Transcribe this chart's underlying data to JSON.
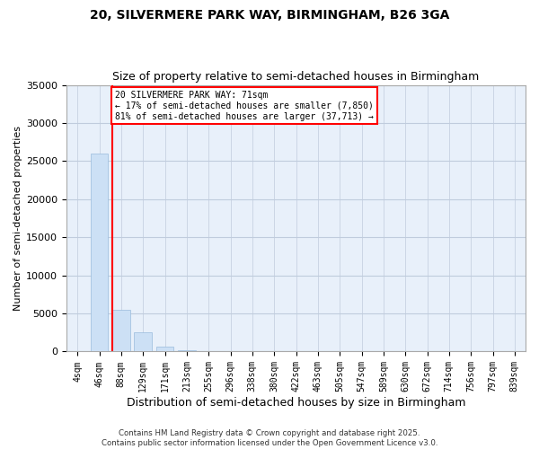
{
  "title_line1": "20, SILVERMERE PARK WAY, BIRMINGHAM, B26 3GA",
  "title_line2": "Size of property relative to semi-detached houses in Birmingham",
  "xlabel": "Distribution of semi-detached houses by size in Birmingham",
  "ylabel": "Number of semi-detached properties",
  "annotation_title": "20 SILVERMERE PARK WAY: 71sqm",
  "annotation_line2": "← 17% of semi-detached houses are smaller (7,850)",
  "annotation_line3": "81% of semi-detached houses are larger (37,713) →",
  "footer_line1": "Contains HM Land Registry data © Crown copyright and database right 2025.",
  "footer_line2": "Contains public sector information licensed under the Open Government Licence v3.0.",
  "property_size": 71,
  "bar_color": "#cce0f5",
  "bar_edge_color": "#99bbdd",
  "vline_color": "red",
  "background_color": "#ffffff",
  "plot_bg_color": "#e8f0fa",
  "annotation_box_color": "white",
  "annotation_box_edge": "red",
  "categories": [
    "4sqm",
    "46sqm",
    "88sqm",
    "129sqm",
    "171sqm",
    "213sqm",
    "255sqm",
    "296sqm",
    "338sqm",
    "380sqm",
    "422sqm",
    "463sqm",
    "505sqm",
    "547sqm",
    "589sqm",
    "630sqm",
    "672sqm",
    "714sqm",
    "756sqm",
    "797sqm",
    "839sqm"
  ],
  "values": [
    0,
    26000,
    5500,
    2500,
    700,
    200,
    60,
    25,
    12,
    6,
    3,
    2,
    1,
    1,
    0,
    0,
    0,
    0,
    0,
    0,
    0
  ],
  "ylim": [
    0,
    35000
  ],
  "yticks": [
    0,
    5000,
    10000,
    15000,
    20000,
    25000,
    30000,
    35000
  ],
  "property_bin_index": 1.58,
  "grid_color": "#c0ccdd"
}
